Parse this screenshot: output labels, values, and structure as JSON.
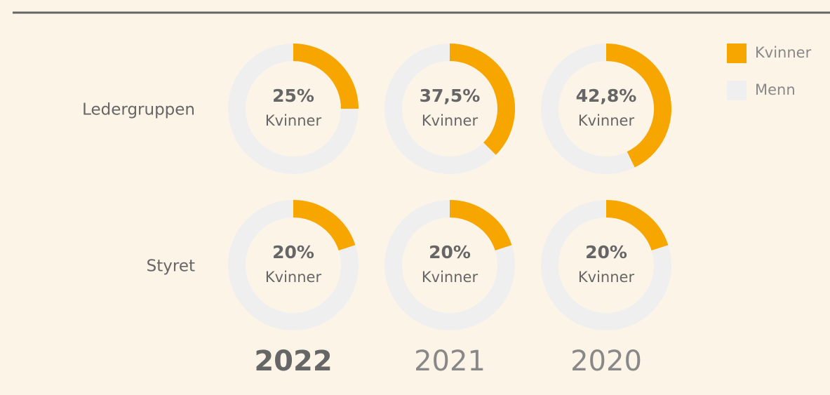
{
  "chart_data": {
    "type": "donut",
    "categories": [
      "2022",
      "2021",
      "2020"
    ],
    "rows": [
      {
        "label": "Ledergruppen",
        "values": [
          25,
          37.5,
          42.8
        ],
        "value_labels": [
          "25%",
          "37,5%",
          "42,8%"
        ]
      },
      {
        "label": "Styret",
        "values": [
          20,
          20,
          20
        ],
        "value_labels": [
          "20%",
          "20%",
          "20%"
        ]
      }
    ],
    "series": [
      {
        "name": "Kvinner",
        "color": "#f7a600"
      },
      {
        "name": "Menn",
        "color": "#efefef"
      }
    ],
    "max": 100
  }
}
